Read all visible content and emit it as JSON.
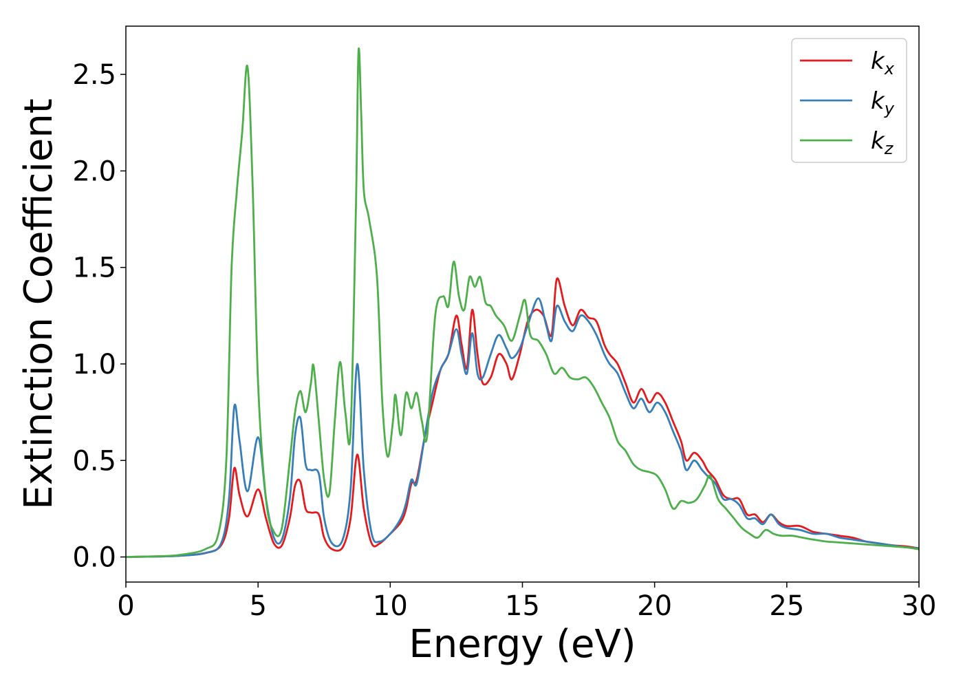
{
  "chart_data": {
    "type": "line",
    "title": "",
    "xlabel": "Energy (eV)",
    "ylabel": "Extinction Coefficient",
    "xlim": [
      0,
      30
    ],
    "ylim": [
      -0.13,
      2.75
    ],
    "xticks": [
      "0",
      "5",
      "10",
      "15",
      "20",
      "25",
      "30"
    ],
    "yticks": [
      "0.0",
      "0.5",
      "1.0",
      "1.5",
      "2.0",
      "2.5"
    ],
    "grid": false,
    "legend": "top-right",
    "series": [
      {
        "name": "k_x",
        "label_main": "k",
        "label_sub": "x",
        "color": "#e41a1c",
        "points": [
          [
            0,
            0
          ],
          [
            1,
            0.002
          ],
          [
            2,
            0.006
          ],
          [
            3,
            0.02
          ],
          [
            3.6,
            0.06
          ],
          [
            3.9,
            0.2
          ],
          [
            4.1,
            0.46
          ],
          [
            4.3,
            0.32
          ],
          [
            4.6,
            0.21
          ],
          [
            5.0,
            0.35
          ],
          [
            5.3,
            0.2
          ],
          [
            5.6,
            0.07
          ],
          [
            5.9,
            0.06
          ],
          [
            6.2,
            0.2
          ],
          [
            6.4,
            0.37
          ],
          [
            6.6,
            0.39
          ],
          [
            6.8,
            0.25
          ],
          [
            7.0,
            0.23
          ],
          [
            7.3,
            0.22
          ],
          [
            7.5,
            0.1
          ],
          [
            7.8,
            0.04
          ],
          [
            8.2,
            0.05
          ],
          [
            8.5,
            0.2
          ],
          [
            8.75,
            0.53
          ],
          [
            9.0,
            0.25
          ],
          [
            9.3,
            0.07
          ],
          [
            9.6,
            0.07
          ],
          [
            10.0,
            0.12
          ],
          [
            10.4,
            0.18
          ],
          [
            10.6,
            0.25
          ],
          [
            10.8,
            0.38
          ],
          [
            11.0,
            0.4
          ],
          [
            11.3,
            0.62
          ],
          [
            11.6,
            0.8
          ],
          [
            11.9,
            0.97
          ],
          [
            12.2,
            1.05
          ],
          [
            12.5,
            1.25
          ],
          [
            12.7,
            1.1
          ],
          [
            12.9,
            0.98
          ],
          [
            13.1,
            1.28
          ],
          [
            13.3,
            1.05
          ],
          [
            13.5,
            0.9
          ],
          [
            13.8,
            0.93
          ],
          [
            14.1,
            1.05
          ],
          [
            14.4,
            1.0
          ],
          [
            14.6,
            0.92
          ],
          [
            14.9,
            1.05
          ],
          [
            15.2,
            1.22
          ],
          [
            15.5,
            1.28
          ],
          [
            15.8,
            1.25
          ],
          [
            16.1,
            1.15
          ],
          [
            16.3,
            1.44
          ],
          [
            16.6,
            1.3
          ],
          [
            16.9,
            1.2
          ],
          [
            17.2,
            1.28
          ],
          [
            17.5,
            1.24
          ],
          [
            17.8,
            1.22
          ],
          [
            18.1,
            1.1
          ],
          [
            18.3,
            1.05
          ],
          [
            18.6,
            1.0
          ],
          [
            18.9,
            0.9
          ],
          [
            19.2,
            0.8
          ],
          [
            19.5,
            0.87
          ],
          [
            19.8,
            0.8
          ],
          [
            20.1,
            0.85
          ],
          [
            20.4,
            0.8
          ],
          [
            20.7,
            0.7
          ],
          [
            21.0,
            0.6
          ],
          [
            21.2,
            0.5
          ],
          [
            21.5,
            0.54
          ],
          [
            21.8,
            0.5
          ],
          [
            22.0,
            0.45
          ],
          [
            22.3,
            0.4
          ],
          [
            22.6,
            0.32
          ],
          [
            22.9,
            0.3
          ],
          [
            23.2,
            0.3
          ],
          [
            23.5,
            0.22
          ],
          [
            23.8,
            0.22
          ],
          [
            24.1,
            0.18
          ],
          [
            24.4,
            0.22
          ],
          [
            24.7,
            0.18
          ],
          [
            25.0,
            0.16
          ],
          [
            25.5,
            0.16
          ],
          [
            26.0,
            0.13
          ],
          [
            26.5,
            0.12
          ],
          [
            27.0,
            0.11
          ],
          [
            27.5,
            0.1
          ],
          [
            28.0,
            0.08
          ],
          [
            28.5,
            0.07
          ],
          [
            29.0,
            0.06
          ],
          [
            29.5,
            0.055
          ],
          [
            30.0,
            0.045
          ]
        ]
      },
      {
        "name": "k_y",
        "label_main": "k",
        "label_sub": "y",
        "color": "#377eb8",
        "points": [
          [
            0,
            0
          ],
          [
            1,
            0.002
          ],
          [
            2,
            0.006
          ],
          [
            3,
            0.02
          ],
          [
            3.6,
            0.07
          ],
          [
            3.9,
            0.3
          ],
          [
            4.1,
            0.78
          ],
          [
            4.3,
            0.6
          ],
          [
            4.6,
            0.34
          ],
          [
            5.0,
            0.62
          ],
          [
            5.3,
            0.3
          ],
          [
            5.6,
            0.1
          ],
          [
            5.9,
            0.09
          ],
          [
            6.2,
            0.3
          ],
          [
            6.4,
            0.63
          ],
          [
            6.6,
            0.72
          ],
          [
            6.8,
            0.48
          ],
          [
            7.0,
            0.45
          ],
          [
            7.3,
            0.43
          ],
          [
            7.5,
            0.2
          ],
          [
            7.8,
            0.07
          ],
          [
            8.2,
            0.09
          ],
          [
            8.5,
            0.35
          ],
          [
            8.75,
            1.0
          ],
          [
            9.0,
            0.45
          ],
          [
            9.3,
            0.12
          ],
          [
            9.6,
            0.08
          ],
          [
            10.0,
            0.12
          ],
          [
            10.4,
            0.2
          ],
          [
            10.6,
            0.28
          ],
          [
            10.8,
            0.4
          ],
          [
            11.0,
            0.38
          ],
          [
            11.3,
            0.62
          ],
          [
            11.6,
            0.85
          ],
          [
            11.9,
            0.97
          ],
          [
            12.2,
            1.05
          ],
          [
            12.5,
            1.18
          ],
          [
            12.7,
            1.05
          ],
          [
            12.9,
            0.95
          ],
          [
            13.1,
            1.16
          ],
          [
            13.3,
            0.95
          ],
          [
            13.5,
            0.93
          ],
          [
            13.8,
            1.05
          ],
          [
            14.1,
            1.15
          ],
          [
            14.4,
            1.08
          ],
          [
            14.6,
            1.03
          ],
          [
            14.9,
            1.08
          ],
          [
            15.2,
            1.2
          ],
          [
            15.6,
            1.34
          ],
          [
            15.9,
            1.2
          ],
          [
            16.1,
            1.12
          ],
          [
            16.3,
            1.3
          ],
          [
            16.6,
            1.22
          ],
          [
            16.9,
            1.17
          ],
          [
            17.2,
            1.25
          ],
          [
            17.5,
            1.22
          ],
          [
            17.8,
            1.15
          ],
          [
            18.1,
            1.05
          ],
          [
            18.3,
            1.0
          ],
          [
            18.6,
            0.95
          ],
          [
            18.9,
            0.85
          ],
          [
            19.2,
            0.77
          ],
          [
            19.5,
            0.82
          ],
          [
            19.8,
            0.75
          ],
          [
            20.1,
            0.8
          ],
          [
            20.4,
            0.75
          ],
          [
            20.7,
            0.65
          ],
          [
            21.0,
            0.55
          ],
          [
            21.2,
            0.45
          ],
          [
            21.5,
            0.5
          ],
          [
            21.8,
            0.45
          ],
          [
            22.0,
            0.42
          ],
          [
            22.3,
            0.38
          ],
          [
            22.6,
            0.3
          ],
          [
            22.9,
            0.3
          ],
          [
            23.2,
            0.27
          ],
          [
            23.5,
            0.2
          ],
          [
            23.8,
            0.2
          ],
          [
            24.1,
            0.17
          ],
          [
            24.4,
            0.22
          ],
          [
            24.7,
            0.17
          ],
          [
            25.0,
            0.15
          ],
          [
            25.5,
            0.14
          ],
          [
            26.0,
            0.12
          ],
          [
            26.5,
            0.12
          ],
          [
            27.0,
            0.1
          ],
          [
            27.5,
            0.09
          ],
          [
            28.0,
            0.08
          ],
          [
            28.5,
            0.07
          ],
          [
            29.0,
            0.06
          ],
          [
            29.5,
            0.05
          ],
          [
            30.0,
            0.045
          ]
        ]
      },
      {
        "name": "k_z",
        "label_main": "k",
        "label_sub": "z",
        "color": "#4daf4a",
        "points": [
          [
            0,
            0
          ],
          [
            1,
            0.003
          ],
          [
            2,
            0.01
          ],
          [
            3,
            0.04
          ],
          [
            3.5,
            0.12
          ],
          [
            3.8,
            0.5
          ],
          [
            4.0,
            1.5
          ],
          [
            4.2,
            1.9
          ],
          [
            4.4,
            2.2
          ],
          [
            4.6,
            2.54
          ],
          [
            4.8,
            1.9
          ],
          [
            5.0,
            0.9
          ],
          [
            5.3,
            0.3
          ],
          [
            5.6,
            0.13
          ],
          [
            5.9,
            0.15
          ],
          [
            6.2,
            0.5
          ],
          [
            6.4,
            0.75
          ],
          [
            6.6,
            0.86
          ],
          [
            6.8,
            0.75
          ],
          [
            7.0,
            0.9
          ],
          [
            7.1,
            0.99
          ],
          [
            7.3,
            0.7
          ],
          [
            7.5,
            0.4
          ],
          [
            7.7,
            0.33
          ],
          [
            7.9,
            0.7
          ],
          [
            8.1,
            1.01
          ],
          [
            8.3,
            0.75
          ],
          [
            8.5,
            0.65
          ],
          [
            8.7,
            1.8
          ],
          [
            8.8,
            2.62
          ],
          [
            8.9,
            2.3
          ],
          [
            9.0,
            1.9
          ],
          [
            9.2,
            1.75
          ],
          [
            9.5,
            1.45
          ],
          [
            9.7,
            0.8
          ],
          [
            9.9,
            0.52
          ],
          [
            10.1,
            0.7
          ],
          [
            10.2,
            0.84
          ],
          [
            10.4,
            0.63
          ],
          [
            10.6,
            0.85
          ],
          [
            10.8,
            0.77
          ],
          [
            11.0,
            0.85
          ],
          [
            11.2,
            0.7
          ],
          [
            11.4,
            0.63
          ],
          [
            11.7,
            1.25
          ],
          [
            12.0,
            1.35
          ],
          [
            12.2,
            1.3
          ],
          [
            12.4,
            1.53
          ],
          [
            12.6,
            1.35
          ],
          [
            12.8,
            1.28
          ],
          [
            13.0,
            1.45
          ],
          [
            13.2,
            1.4
          ],
          [
            13.4,
            1.45
          ],
          [
            13.6,
            1.32
          ],
          [
            13.8,
            1.3
          ],
          [
            14.0,
            1.25
          ],
          [
            14.3,
            1.2
          ],
          [
            14.6,
            1.12
          ],
          [
            14.9,
            1.25
          ],
          [
            15.1,
            1.33
          ],
          [
            15.3,
            1.15
          ],
          [
            15.6,
            1.12
          ],
          [
            15.9,
            1.05
          ],
          [
            16.2,
            0.95
          ],
          [
            16.5,
            0.98
          ],
          [
            16.8,
            0.93
          ],
          [
            17.1,
            0.92
          ],
          [
            17.4,
            0.93
          ],
          [
            17.7,
            0.88
          ],
          [
            18.0,
            0.8
          ],
          [
            18.3,
            0.72
          ],
          [
            18.6,
            0.6
          ],
          [
            18.9,
            0.55
          ],
          [
            19.2,
            0.48
          ],
          [
            19.5,
            0.45
          ],
          [
            19.8,
            0.44
          ],
          [
            20.1,
            0.42
          ],
          [
            20.4,
            0.35
          ],
          [
            20.7,
            0.25
          ],
          [
            21.0,
            0.29
          ],
          [
            21.3,
            0.28
          ],
          [
            21.6,
            0.3
          ],
          [
            21.9,
            0.37
          ],
          [
            22.1,
            0.42
          ],
          [
            22.4,
            0.3
          ],
          [
            22.7,
            0.25
          ],
          [
            23.0,
            0.2
          ],
          [
            23.3,
            0.15
          ],
          [
            23.6,
            0.12
          ],
          [
            23.9,
            0.1
          ],
          [
            24.2,
            0.14
          ],
          [
            24.5,
            0.12
          ],
          [
            24.8,
            0.11
          ],
          [
            25.2,
            0.11
          ],
          [
            25.6,
            0.1
          ],
          [
            26.0,
            0.09
          ],
          [
            26.5,
            0.08
          ],
          [
            27.0,
            0.075
          ],
          [
            27.5,
            0.07
          ],
          [
            28.0,
            0.065
          ],
          [
            28.5,
            0.06
          ],
          [
            29.0,
            0.055
          ],
          [
            29.5,
            0.05
          ],
          [
            30.0,
            0.04
          ]
        ]
      }
    ]
  }
}
